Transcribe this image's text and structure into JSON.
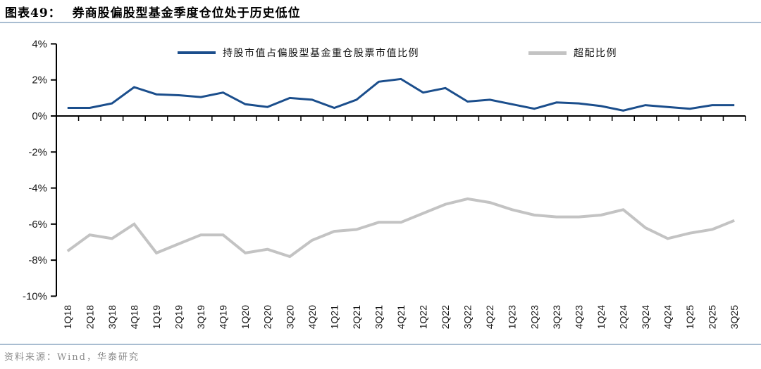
{
  "header": {
    "figure_label": "图表49：",
    "title": "券商股偏股型基金季度仓位处于历史低位"
  },
  "legend": [
    {
      "label": "持股市值占偏股型基金重仓股票市值比例",
      "color": "#1b4e8c"
    },
    {
      "label": "超配比例",
      "color": "#c3c3c3"
    }
  ],
  "footer": {
    "source": "资料来源：Wind，华泰研究"
  },
  "colors": {
    "axis": "#000000",
    "tick_label": "#1a1a1a",
    "rule_blue": "#a9bdd1",
    "source_gray": "#8c8c8c"
  },
  "chart_data": {
    "type": "line",
    "title": "券商股偏股型基金季度仓位处于历史低位",
    "xlabel": "",
    "ylabel": "",
    "grid": false,
    "legend_position": "top",
    "ylim": [
      -10,
      4
    ],
    "ytick_step": 2,
    "ytick_labels": [
      "4%",
      "2%",
      "0%",
      "-2%",
      "-4%",
      "-6%",
      "-8%",
      "-10%"
    ],
    "zero_axis": true,
    "categories": [
      "1Q18",
      "2Q18",
      "3Q18",
      "4Q18",
      "1Q19",
      "2Q19",
      "3Q19",
      "4Q19",
      "1Q20",
      "2Q20",
      "3Q20",
      "4Q20",
      "1Q21",
      "2Q21",
      "3Q21",
      "4Q21",
      "1Q22",
      "2Q22",
      "3Q22",
      "4Q22",
      "1Q23",
      "2Q23",
      "3Q23",
      "4Q23",
      "1Q24",
      "2Q24",
      "3Q24",
      "4Q24",
      "1Q25",
      "2Q25",
      "3Q25"
    ],
    "series": [
      {
        "name": "持股市值占偏股型基金重仓股票市值比例",
        "color": "#1b4e8c",
        "values": [
          0.45,
          0.45,
          0.7,
          1.6,
          1.2,
          1.15,
          1.05,
          1.3,
          0.65,
          0.5,
          1.0,
          0.9,
          0.45,
          0.9,
          1.9,
          2.05,
          1.3,
          1.55,
          0.8,
          0.9,
          0.65,
          0.4,
          0.75,
          0.7,
          0.55,
          0.3,
          0.6,
          0.5,
          0.4,
          0.6,
          0.6
        ]
      },
      {
        "name": "超配比例",
        "color": "#c3c3c3",
        "values": [
          -7.5,
          -6.6,
          -6.8,
          -6.0,
          -7.6,
          -7.1,
          -6.6,
          -6.6,
          -7.6,
          -7.4,
          -7.8,
          -6.9,
          -6.4,
          -6.3,
          -5.9,
          -5.9,
          -5.4,
          -4.9,
          -4.6,
          -4.8,
          -5.2,
          -5.5,
          -5.6,
          -5.6,
          -5.5,
          -5.2,
          -6.2,
          -6.8,
          -6.5,
          -6.3,
          -5.8
        ]
      }
    ]
  }
}
